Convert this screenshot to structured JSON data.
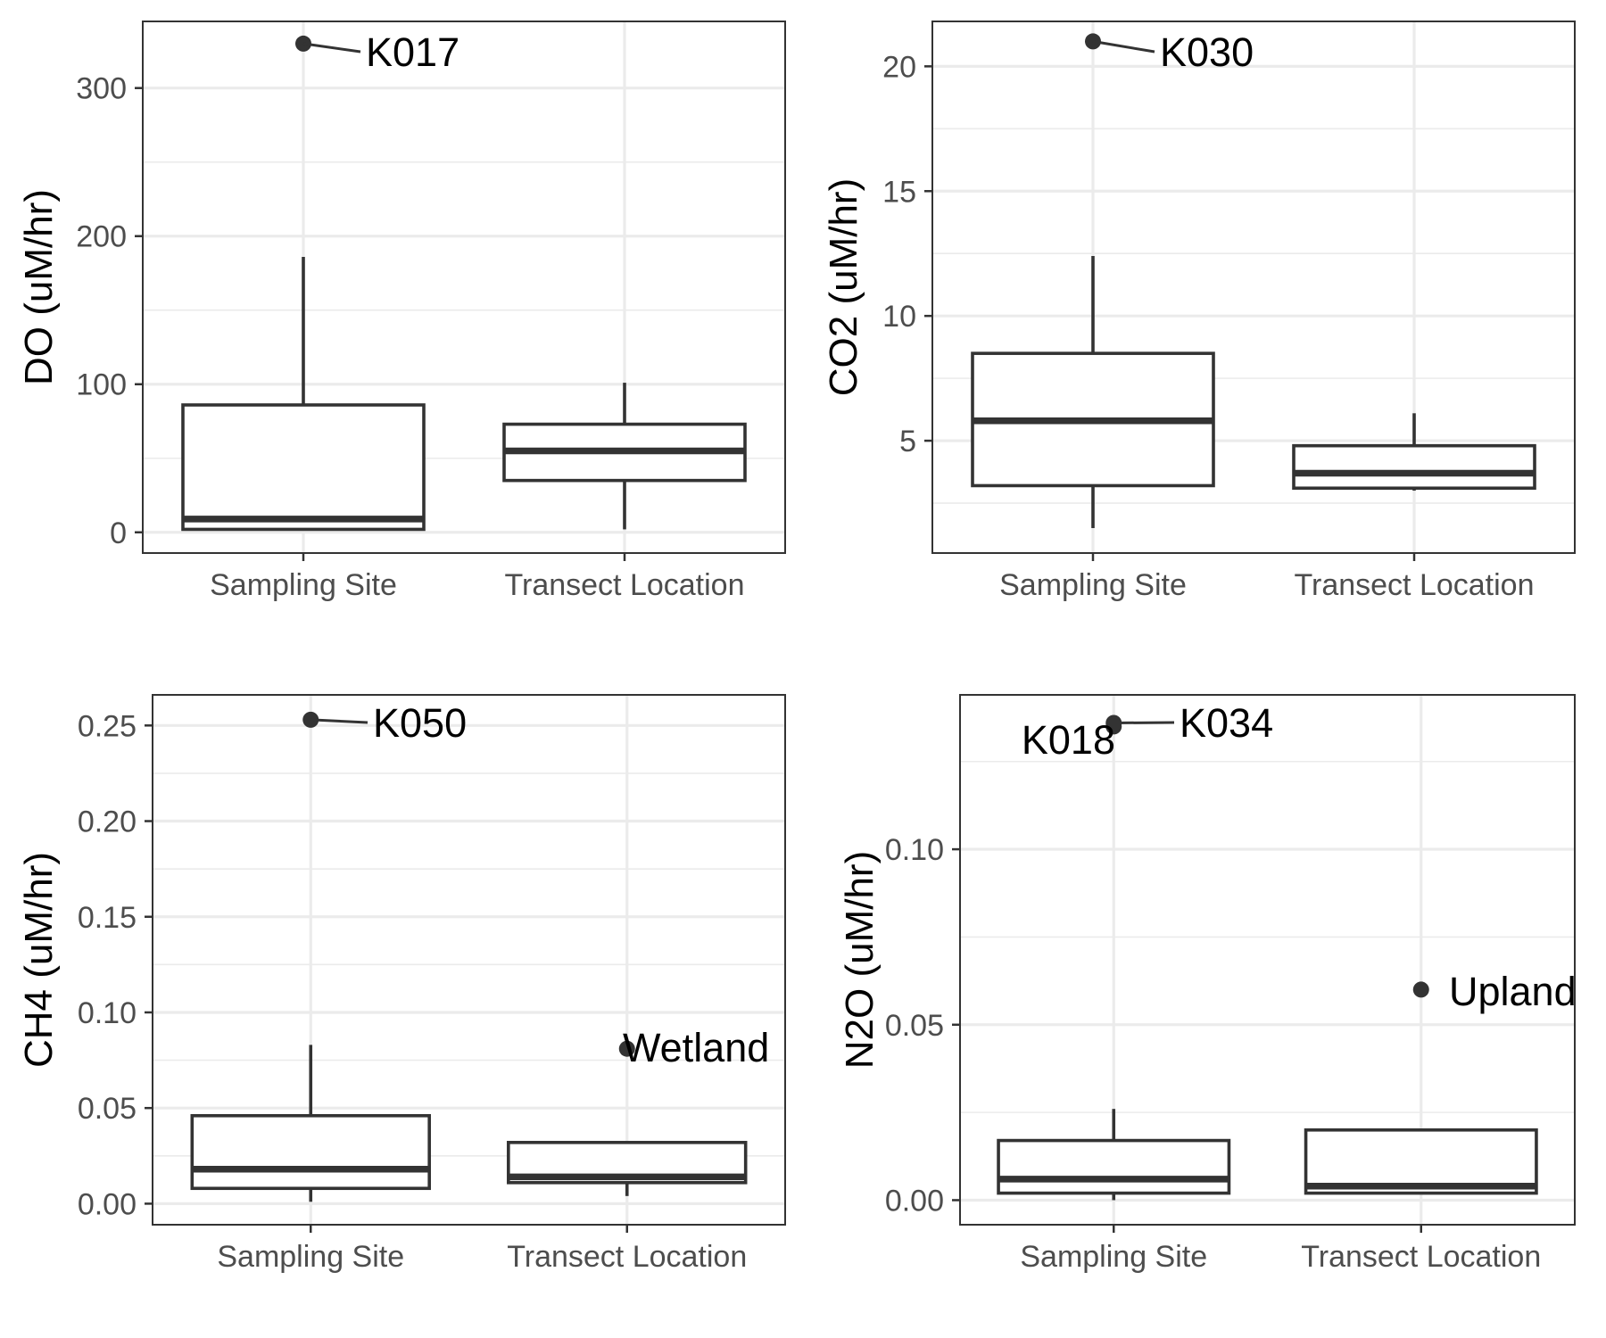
{
  "chart_data": [
    {
      "type": "box",
      "ylabel": "DO (uM/hr)",
      "categories": [
        "Sampling Site",
        "Transect Location"
      ],
      "ylim": [
        -14,
        345
      ],
      "yticks": [
        0,
        100,
        200,
        300
      ],
      "ytick_labels": [
        "0",
        "100",
        "200",
        "300"
      ],
      "grid": true,
      "boxes": [
        {
          "category": "Sampling Site",
          "whisker_low": 2,
          "q1": 2,
          "median": 9,
          "q3": 86,
          "whisker_high": 186
        },
        {
          "category": "Transect Location",
          "whisker_low": 2,
          "q1": 35,
          "median": 55,
          "q3": 73,
          "whisker_high": 101
        }
      ],
      "outliers": [
        {
          "category": "Sampling Site",
          "y": 330,
          "label": "K017"
        }
      ]
    },
    {
      "type": "box",
      "ylabel": "CO2 (uM/hr)",
      "categories": [
        "Sampling Site",
        "Transect Location"
      ],
      "ylim": [
        0.5,
        21.8
      ],
      "yticks": [
        5,
        10,
        15,
        20
      ],
      "ytick_labels": [
        "5",
        "10",
        "15",
        "20"
      ],
      "grid": true,
      "boxes": [
        {
          "category": "Sampling Site",
          "whisker_low": 1.5,
          "q1": 3.2,
          "median": 5.8,
          "q3": 8.5,
          "whisker_high": 12.4
        },
        {
          "category": "Transect Location",
          "whisker_low": 3.0,
          "q1": 3.1,
          "median": 3.7,
          "q3": 4.8,
          "whisker_high": 6.1
        }
      ],
      "outliers": [
        {
          "category": "Sampling Site",
          "y": 21,
          "label": "K030"
        }
      ]
    },
    {
      "type": "box",
      "ylabel": "CH4 (uM/hr)",
      "categories": [
        "Sampling Site",
        "Transect Location"
      ],
      "ylim": [
        -0.011,
        0.266
      ],
      "yticks": [
        0,
        0.05,
        0.1,
        0.15,
        0.2,
        0.25
      ],
      "ytick_labels": [
        "0.00",
        "0.05",
        "0.10",
        "0.15",
        "0.20",
        "0.25"
      ],
      "grid": true,
      "boxes": [
        {
          "category": "Sampling Site",
          "whisker_low": 0.001,
          "q1": 0.008,
          "median": 0.018,
          "q3": 0.046,
          "whisker_high": 0.083
        },
        {
          "category": "Transect Location",
          "whisker_low": 0.004,
          "q1": 0.011,
          "median": 0.014,
          "q3": 0.032,
          "whisker_high": 0.032
        }
      ],
      "outliers": [
        {
          "category": "Sampling Site",
          "y": 0.253,
          "label": "K050"
        },
        {
          "category": "Transect Location",
          "y": 0.081,
          "label": "Wetland"
        }
      ]
    },
    {
      "type": "box",
      "ylabel": "N2O (uM/hr)",
      "categories": [
        "Sampling Site",
        "Transect Location"
      ],
      "ylim": [
        -0.007,
        0.144
      ],
      "yticks": [
        0,
        0.05,
        0.1
      ],
      "ytick_labels": [
        "0.00",
        "0.05",
        "0.10"
      ],
      "grid": true,
      "boxes": [
        {
          "category": "Sampling Site",
          "whisker_low": 0.0,
          "q1": 0.002,
          "median": 0.006,
          "q3": 0.017,
          "whisker_high": 0.026
        },
        {
          "category": "Transect Location",
          "whisker_low": 0.002,
          "q1": 0.002,
          "median": 0.004,
          "q3": 0.02,
          "whisker_high": 0.02
        }
      ],
      "outliers": [
        {
          "category": "Sampling Site",
          "y": 0.136,
          "label": "K034"
        },
        {
          "category": "Sampling Site",
          "y": 0.135,
          "label": "K018"
        },
        {
          "category": "Transect Location",
          "y": 0.06,
          "label": "Upland"
        }
      ]
    }
  ]
}
